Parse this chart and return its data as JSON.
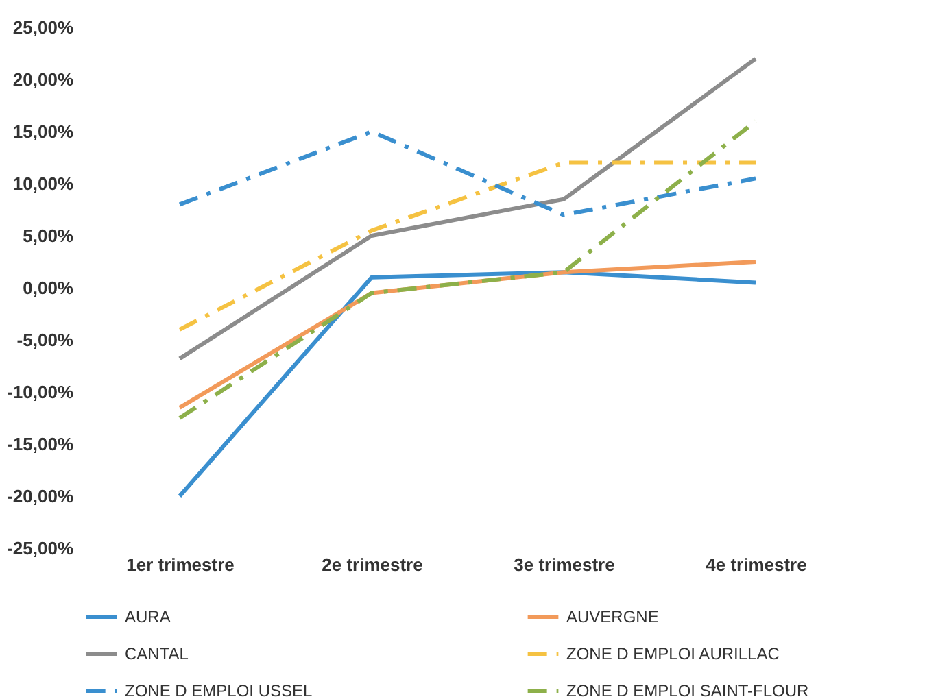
{
  "chart_data": {
    "type": "line",
    "categories": [
      "1er trimestre",
      "2e trimestre",
      "3e trimestre",
      "4e trimestre"
    ],
    "series": [
      {
        "name": "AURA",
        "color": "#3a8fcf",
        "line_style": "solid",
        "values": [
          -20,
          1,
          1.5,
          0.5
        ]
      },
      {
        "name": "AUVERGNE",
        "color": "#f29a5a",
        "line_style": "solid",
        "values": [
          -11.5,
          -0.5,
          1.5,
          2.5
        ]
      },
      {
        "name": "CANTAL",
        "color": "#8c8c8c",
        "line_style": "solid",
        "values": [
          -6.8,
          5,
          8.5,
          22
        ]
      },
      {
        "name": "ZONE D EMPLOI AURILLAC",
        "color": "#f5c242",
        "line_style": "dashdot",
        "values": [
          -4,
          5.5,
          12,
          12
        ]
      },
      {
        "name": "ZONE D EMPLOI USSEL",
        "color": "#3a8fcf",
        "line_style": "dashdot",
        "values": [
          8,
          15,
          7,
          10.5
        ]
      },
      {
        "name": "ZONE D EMPLOI SAINT-FLOUR",
        "color": "#8db04a",
        "line_style": "dashdot",
        "values": [
          -12.5,
          -0.5,
          1.5,
          16
        ]
      }
    ],
    "ylim": [
      -25,
      25
    ],
    "yticks": [
      {
        "value": -25,
        "label": "-25,00%"
      },
      {
        "value": -20,
        "label": "-20,00%"
      },
      {
        "value": -15,
        "label": "-15,00%"
      },
      {
        "value": -10,
        "label": "-10,00%"
      },
      {
        "value": -5,
        "label": "-5,00%"
      },
      {
        "value": 0,
        "label": "0,00%"
      },
      {
        "value": 5,
        "label": "5,00%"
      },
      {
        "value": 10,
        "label": "10,00%"
      },
      {
        "value": 15,
        "label": "15,00%"
      },
      {
        "value": 20,
        "label": "20,00%"
      },
      {
        "value": 25,
        "label": "25,00%"
      }
    ],
    "grid": false,
    "legend": "bottom",
    "marker": "none"
  }
}
